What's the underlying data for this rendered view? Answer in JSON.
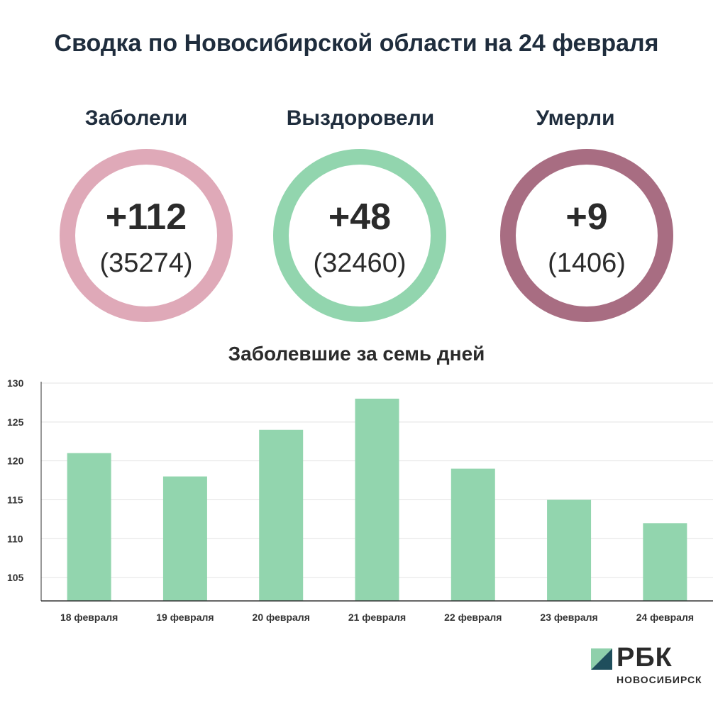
{
  "title": "Сводка по Новосибирской области на 24 февраля",
  "stats": [
    {
      "label": "Заболели",
      "main": "+112",
      "sub": "(35274)",
      "color": "#dfa9b8"
    },
    {
      "label": "Выздоровели",
      "main": "+48",
      "sub": "(32460)",
      "color": "#92d5ae"
    },
    {
      "label": "Умерли",
      "main": "+9",
      "sub": "(1406)",
      "color": "#a86d82"
    }
  ],
  "chart_title": "Заболевшие за семь дней",
  "logo": {
    "name": "РБК",
    "region": "НОВОСИБИРСК"
  },
  "colors": {
    "bar": "#92d5ae",
    "grid": "#e3e3e3",
    "axis": "#333333",
    "logo_dark": "#1f4e5c",
    "logo_light": "#8fd0ab"
  },
  "chart_data": {
    "type": "bar",
    "categories": [
      "18 февраля",
      "19 февраля",
      "20 февраля",
      "21 февраля",
      "22 февраля",
      "23 февраля",
      "24 февраля"
    ],
    "values": [
      121,
      118,
      124,
      128,
      119,
      115,
      112
    ],
    "ylim": [
      102,
      130
    ],
    "yticks": [
      105,
      110,
      115,
      120,
      125,
      130
    ],
    "title": "Заболевшие за семь дней",
    "grid": true
  }
}
